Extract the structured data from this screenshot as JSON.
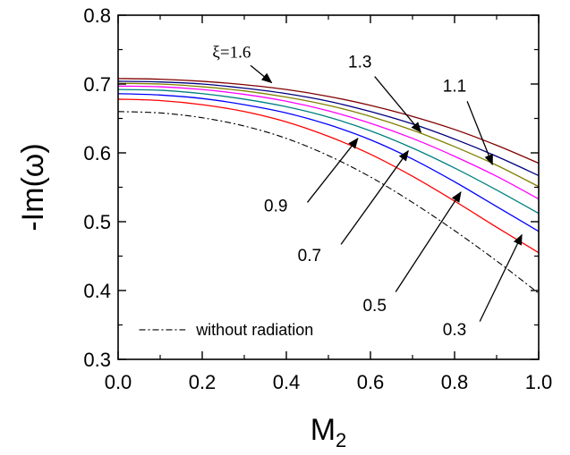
{
  "chart_data": {
    "type": "line",
    "xlabel": "M",
    "xlabel_subscript": "2",
    "ylabel": "-Im(ω)",
    "xlim": [
      0.0,
      1.0
    ],
    "ylim": [
      0.3,
      0.8
    ],
    "x_ticks": [
      "0.0",
      "0.2",
      "0.4",
      "0.6",
      "0.8",
      "1.0"
    ],
    "y_ticks": [
      "0.3",
      "0.4",
      "0.5",
      "0.6",
      "0.7",
      "0.8"
    ],
    "x_tick_values": [
      0.0,
      0.2,
      0.4,
      0.6,
      0.8,
      1.0
    ],
    "y_tick_values": [
      0.3,
      0.4,
      0.5,
      0.6,
      0.7,
      0.8
    ],
    "grid": false,
    "x": [
      0.0,
      0.1,
      0.2,
      0.3,
      0.4,
      0.5,
      0.6,
      0.7,
      0.8,
      0.9,
      1.0
    ],
    "series": [
      {
        "color": "#ff0000",
        "values": [
          0.678,
          0.676,
          0.67,
          0.66,
          0.645,
          0.624,
          0.598,
          0.566,
          0.53,
          0.492,
          0.455
        ]
      },
      {
        "color": "#0000ff",
        "values": [
          0.686,
          0.684,
          0.679,
          0.67,
          0.658,
          0.641,
          0.619,
          0.591,
          0.558,
          0.522,
          0.486
        ]
      },
      {
        "color": "#008080",
        "values": [
          0.692,
          0.691,
          0.686,
          0.678,
          0.667,
          0.652,
          0.632,
          0.607,
          0.578,
          0.546,
          0.512
        ]
      },
      {
        "color": "#ff00ff",
        "values": [
          0.697,
          0.696,
          0.692,
          0.685,
          0.675,
          0.661,
          0.643,
          0.621,
          0.595,
          0.566,
          0.533
        ]
      },
      {
        "color": "#808000",
        "values": [
          0.701,
          0.7,
          0.696,
          0.69,
          0.681,
          0.669,
          0.653,
          0.633,
          0.609,
          0.582,
          0.551
        ]
      },
      {
        "color": "#000080",
        "values": [
          0.704,
          0.703,
          0.7,
          0.694,
          0.686,
          0.675,
          0.66,
          0.642,
          0.62,
          0.595,
          0.567
        ]
      },
      {
        "color": "#800000",
        "values": [
          0.708,
          0.707,
          0.704,
          0.699,
          0.692,
          0.682,
          0.669,
          0.653,
          0.634,
          0.611,
          0.585
        ]
      },
      {
        "name": "without radiation",
        "color": "#000000",
        "dash": "dashdot",
        "values": [
          0.66,
          0.658,
          0.651,
          0.639,
          0.621,
          0.596,
          0.565,
          0.528,
          0.487,
          0.443,
          0.396
        ]
      }
    ],
    "annotations": [
      {
        "text": "ξ=1.6",
        "label_at": [
          0.27,
          0.738
        ],
        "arrow_from": [
          0.315,
          0.727
        ],
        "arrow_to": [
          0.365,
          0.702
        ]
      },
      {
        "text": "1.3",
        "label_at": [
          0.575,
          0.724
        ],
        "arrow_from": [
          0.61,
          0.711
        ],
        "arrow_to": [
          0.72,
          0.63
        ]
      },
      {
        "text": "1.1",
        "label_at": [
          0.8,
          0.689
        ],
        "arrow_from": [
          0.83,
          0.675
        ],
        "arrow_to": [
          0.89,
          0.583
        ]
      },
      {
        "text": "0.9",
        "label_at": [
          0.375,
          0.515
        ],
        "arrow_from": [
          0.45,
          0.528
        ],
        "arrow_to": [
          0.57,
          0.621
        ]
      },
      {
        "text": "0.7",
        "label_at": [
          0.455,
          0.443
        ],
        "arrow_from": [
          0.53,
          0.467
        ],
        "arrow_to": [
          0.69,
          0.603
        ]
      },
      {
        "text": "0.5",
        "label_at": [
          0.61,
          0.37
        ],
        "arrow_from": [
          0.66,
          0.398
        ],
        "arrow_to": [
          0.815,
          0.543
        ]
      },
      {
        "text": "0.3",
        "label_at": [
          0.8,
          0.335
        ],
        "arrow_from": [
          0.86,
          0.355
        ],
        "arrow_to": [
          0.96,
          0.481
        ]
      }
    ],
    "legend": {
      "placement": "bottom-left",
      "label": "without radiation"
    }
  }
}
